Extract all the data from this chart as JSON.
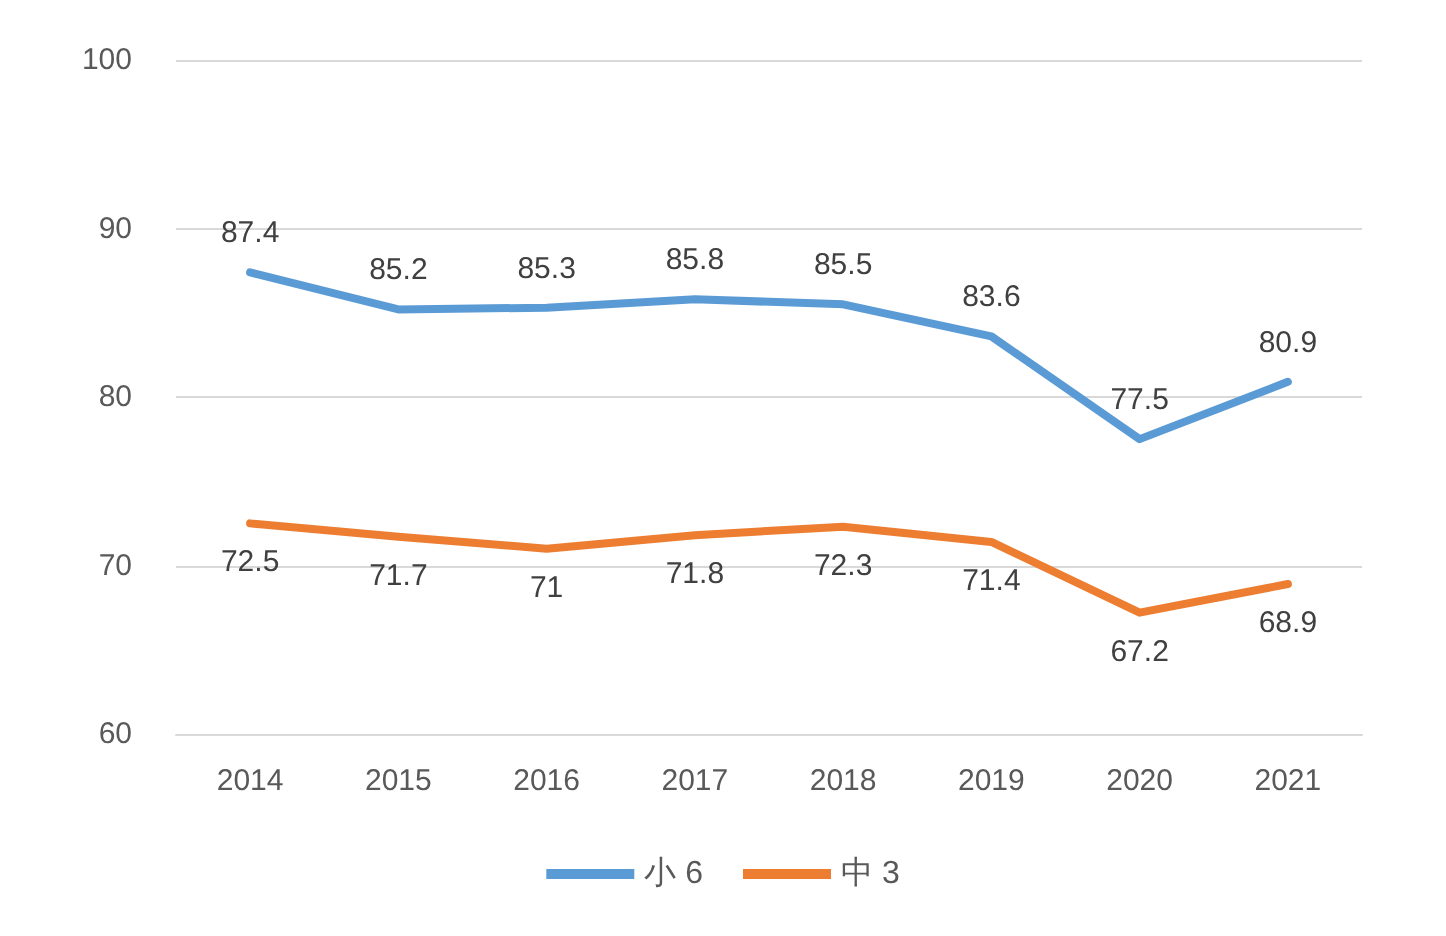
{
  "chart_data": {
    "type": "line",
    "categories": [
      "2014",
      "2015",
      "2016",
      "2017",
      "2018",
      "2019",
      "2020",
      "2021"
    ],
    "series": [
      {
        "name": "小 6",
        "color": "#5b9bd5",
        "values": [
          87.4,
          85.2,
          85.3,
          85.8,
          85.5,
          83.6,
          77.5,
          80.9
        ]
      },
      {
        "name": "中 3",
        "color": "#ed7d31",
        "values": [
          72.5,
          71.7,
          71,
          71.8,
          72.3,
          71.4,
          67.2,
          68.9
        ]
      }
    ],
    "ylim": [
      60,
      100
    ],
    "yticks": [
      60,
      70,
      80,
      90,
      100
    ],
    "grid": "y",
    "legend": "bottom",
    "data_labels": true,
    "marker": "none",
    "line_style": "solid"
  }
}
